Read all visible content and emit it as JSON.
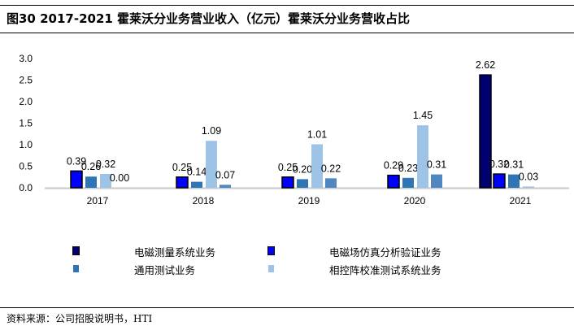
{
  "title": "图30 2017-2021 霍莱沃分业务营业收入（亿元）霍莱沃分业务营收占比",
  "source": "资料来源：公司招股说明书，HTI",
  "chart_data": {
    "type": "bar",
    "title": "2017-2021 霍莱沃分业务营业收入（亿元）",
    "categories": [
      "2017",
      "2018",
      "2019",
      "2020",
      "2021"
    ],
    "ylim": [
      0,
      3.0
    ],
    "yticks": [
      "0.0",
      "0.5",
      "1.0",
      "1.5",
      "2.0",
      "2.5",
      "3.0"
    ],
    "grid": false,
    "legend_placement": "bottom",
    "series": [
      {
        "name": "电磁测量系统业务",
        "color": "#000070",
        "values": [
          null,
          null,
          null,
          null,
          2.62
        ]
      },
      {
        "name": "电磁场仿真分析验证业务",
        "color": "#0000ff",
        "values": [
          0.39,
          0.25,
          0.25,
          0.29,
          0.32
        ]
      },
      {
        "name": "通用测试业务",
        "color": "#2e75b6",
        "values": [
          0.26,
          0.14,
          0.2,
          0.23,
          0.31
        ]
      },
      {
        "name": "相控阵校准测试系统业务",
        "color": "#9dc3e6",
        "values": [
          0.32,
          1.09,
          1.01,
          1.45,
          0.03
        ]
      },
      {
        "name": "",
        "color": "#4f87c0",
        "values": [
          0.0,
          0.07,
          0.22,
          0.31,
          null
        ]
      }
    ]
  }
}
